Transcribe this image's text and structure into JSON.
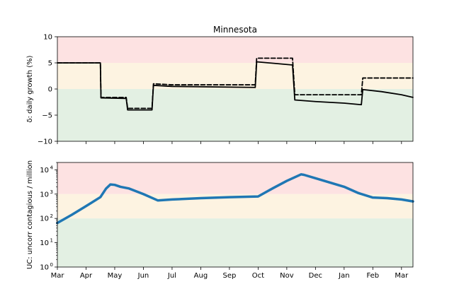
{
  "chart_data": [
    {
      "type": "line",
      "title": "Minnesota",
      "ylabel": "δ: daily growth (%)",
      "xlabel": "",
      "xlim": [
        0,
        12.4
      ],
      "ylim": [
        -10,
        10
      ],
      "y_ticks": [
        10,
        5,
        0,
        -5,
        -10
      ],
      "y_tick_labels": [
        "10",
        "5",
        "0",
        "−5",
        "−10"
      ],
      "background_bands": [
        {
          "from": 5,
          "to": 10,
          "color": "#fde2e2"
        },
        {
          "from": 0,
          "to": 5,
          "color": "#fdf3e1"
        },
        {
          "from": -10,
          "to": 0,
          "color": "#e3f0e3"
        }
      ],
      "series": [
        {
          "style": "solid",
          "color": "#000000",
          "x": [
            0,
            1.5,
            1.52,
            2.4,
            2.45,
            3.3,
            3.35,
            4.0,
            6.9,
            6.95,
            8.2,
            8.28,
            9.0,
            10.0,
            10.6,
            10.65,
            11.3,
            12.0,
            12.4
          ],
          "y": [
            5.0,
            5.0,
            -1.7,
            -1.8,
            -4.0,
            -4.0,
            0.7,
            0.5,
            0.3,
            5.2,
            4.6,
            -2.1,
            -2.4,
            -2.7,
            -3.0,
            -0.1,
            -0.5,
            -1.1,
            -1.6
          ]
        },
        {
          "style": "dashed",
          "color": "#000000",
          "x": [
            0,
            1.5,
            1.52,
            2.4,
            2.45,
            3.3,
            3.35,
            4.0,
            6.9,
            6.95,
            8.2,
            8.28,
            10.6,
            10.65,
            12.4
          ],
          "y": [
            5.0,
            5.0,
            -1.6,
            -1.6,
            -3.7,
            -3.7,
            1.0,
            0.8,
            0.8,
            5.9,
            5.9,
            -1.1,
            -1.1,
            2.1,
            2.1
          ]
        }
      ]
    },
    {
      "type": "line",
      "ylabel": "UC: uncorr contagious / million",
      "xlabel": "",
      "yscale": "log",
      "xlim": [
        0,
        12.4
      ],
      "ylim": [
        1,
        20000
      ],
      "y_ticks": [
        1,
        10,
        100,
        1000,
        10000
      ],
      "y_tick_labels": [
        "10",
        "10",
        "10",
        "10",
        "10"
      ],
      "y_tick_exponents": [
        "0",
        "1",
        "2",
        "3",
        "4"
      ],
      "x_tick_positions": [
        0,
        1,
        2,
        3,
        4,
        5,
        6,
        7,
        8,
        9,
        10,
        11,
        12
      ],
      "x_tick_labels": [
        "Mar",
        "Apr",
        "May",
        "Jun",
        "Jul",
        "Aug",
        "Sep",
        "Oct",
        "Nov",
        "Dec",
        "Jan",
        "Feb",
        "Mar"
      ],
      "background_bands": [
        {
          "from": 1000,
          "to": 20000,
          "color": "#fde2e2"
        },
        {
          "from": 100,
          "to": 1000,
          "color": "#fdf3e1"
        },
        {
          "from": 1,
          "to": 100,
          "color": "#e3f0e3"
        }
      ],
      "series": [
        {
          "style": "solid",
          "color": "#1f77b4",
          "x": [
            0,
            0.5,
            1.0,
            1.5,
            1.7,
            1.85,
            2.0,
            2.2,
            2.5,
            3.0,
            3.5,
            4.0,
            5.0,
            6.0,
            7.0,
            7.5,
            8.0,
            8.5,
            8.6,
            9.0,
            10.0,
            10.5,
            11.0,
            11.5,
            12.0,
            12.4
          ],
          "y": [
            65,
            140,
            320,
            750,
            1700,
            2500,
            2400,
            2000,
            1700,
            1000,
            550,
            600,
            680,
            750,
            800,
            1700,
            3500,
            6500,
            6200,
            4500,
            2000,
            1100,
            720,
            680,
            600,
            500
          ]
        }
      ]
    }
  ]
}
